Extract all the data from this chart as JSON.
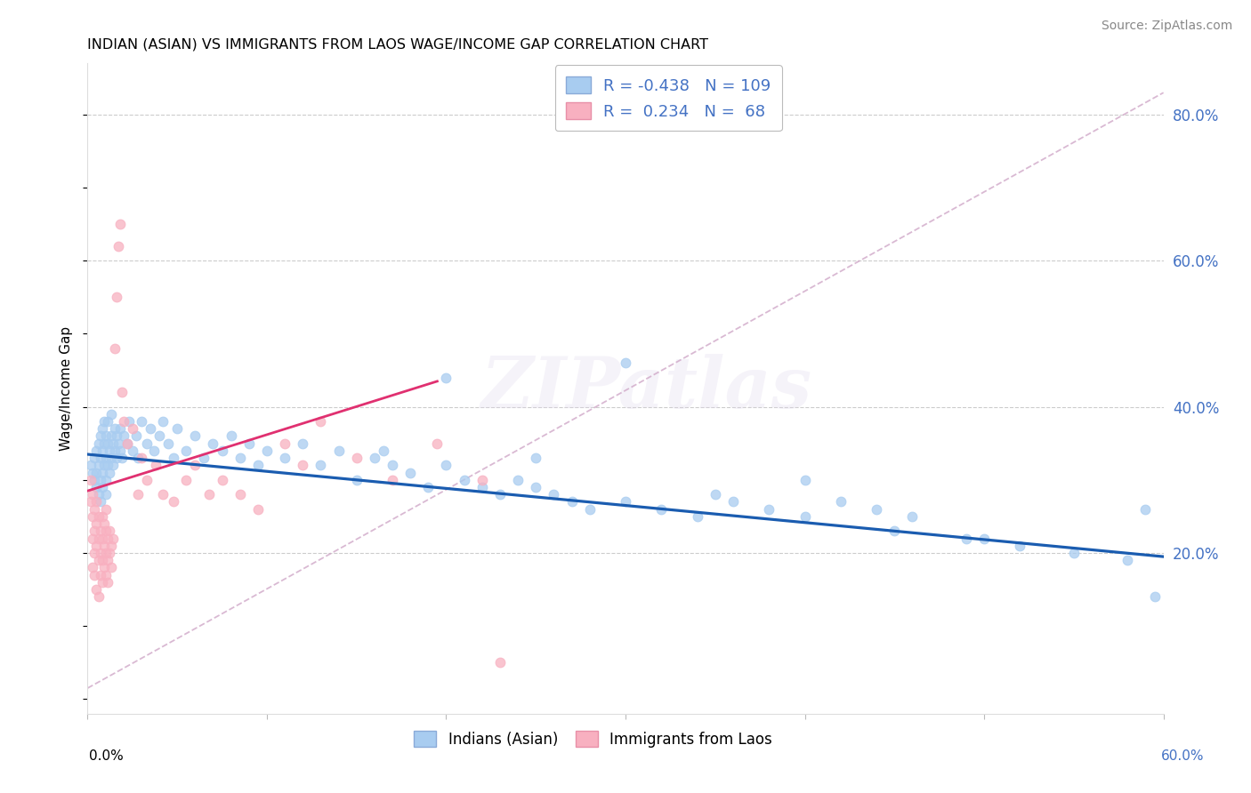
{
  "title": "INDIAN (ASIAN) VS IMMIGRANTS FROM LAOS WAGE/INCOME GAP CORRELATION CHART",
  "source": "Source: ZipAtlas.com",
  "ylabel": "Wage/Income Gap",
  "right_yticks": [
    "20.0%",
    "40.0%",
    "60.0%",
    "80.0%"
  ],
  "right_ytick_vals": [
    0.2,
    0.4,
    0.6,
    0.8
  ],
  "xlim": [
    0.0,
    0.6
  ],
  "ylim": [
    -0.02,
    0.87
  ],
  "legend1_label": "R = -0.438   N = 109",
  "legend2_label": "R =  0.234   N =  68",
  "legend_xlabel1": "Indians (Asian)",
  "legend_xlabel2": "Immigrants from Laos",
  "color_blue": "#A8CCF0",
  "color_pink": "#F8B0C0",
  "line_blue": "#1A5CB0",
  "line_pink": "#E03070",
  "line_dashed": "#D0A8C8",
  "watermark": "ZIPatlas",
  "indian_x": [
    0.002,
    0.003,
    0.004,
    0.004,
    0.005,
    0.005,
    0.005,
    0.006,
    0.006,
    0.006,
    0.007,
    0.007,
    0.007,
    0.007,
    0.008,
    0.008,
    0.008,
    0.008,
    0.009,
    0.009,
    0.009,
    0.01,
    0.01,
    0.01,
    0.01,
    0.011,
    0.011,
    0.011,
    0.012,
    0.012,
    0.013,
    0.013,
    0.013,
    0.014,
    0.014,
    0.015,
    0.015,
    0.016,
    0.016,
    0.017,
    0.018,
    0.018,
    0.019,
    0.02,
    0.022,
    0.023,
    0.025,
    0.027,
    0.028,
    0.03,
    0.033,
    0.035,
    0.037,
    0.04,
    0.042,
    0.045,
    0.048,
    0.05,
    0.055,
    0.06,
    0.065,
    0.07,
    0.075,
    0.08,
    0.085,
    0.09,
    0.095,
    0.1,
    0.11,
    0.12,
    0.13,
    0.14,
    0.15,
    0.16,
    0.165,
    0.17,
    0.18,
    0.19,
    0.2,
    0.21,
    0.22,
    0.23,
    0.24,
    0.25,
    0.26,
    0.27,
    0.28,
    0.3,
    0.32,
    0.34,
    0.36,
    0.38,
    0.4,
    0.42,
    0.44,
    0.46,
    0.49,
    0.52,
    0.55,
    0.58,
    0.59,
    0.595,
    0.2,
    0.25,
    0.3,
    0.35,
    0.4,
    0.45,
    0.5
  ],
  "indian_y": [
    0.32,
    0.31,
    0.3,
    0.33,
    0.29,
    0.31,
    0.34,
    0.28,
    0.32,
    0.35,
    0.3,
    0.33,
    0.36,
    0.27,
    0.31,
    0.34,
    0.37,
    0.29,
    0.32,
    0.35,
    0.38,
    0.3,
    0.33,
    0.36,
    0.28,
    0.32,
    0.35,
    0.38,
    0.31,
    0.34,
    0.33,
    0.36,
    0.39,
    0.32,
    0.35,
    0.34,
    0.37,
    0.33,
    0.36,
    0.35,
    0.34,
    0.37,
    0.33,
    0.36,
    0.35,
    0.38,
    0.34,
    0.36,
    0.33,
    0.38,
    0.35,
    0.37,
    0.34,
    0.36,
    0.38,
    0.35,
    0.33,
    0.37,
    0.34,
    0.36,
    0.33,
    0.35,
    0.34,
    0.36,
    0.33,
    0.35,
    0.32,
    0.34,
    0.33,
    0.35,
    0.32,
    0.34,
    0.3,
    0.33,
    0.34,
    0.32,
    0.31,
    0.29,
    0.32,
    0.3,
    0.29,
    0.28,
    0.3,
    0.29,
    0.28,
    0.27,
    0.26,
    0.27,
    0.26,
    0.25,
    0.27,
    0.26,
    0.3,
    0.27,
    0.26,
    0.25,
    0.22,
    0.21,
    0.2,
    0.19,
    0.26,
    0.14,
    0.44,
    0.33,
    0.46,
    0.28,
    0.25,
    0.23,
    0.22
  ],
  "laos_x": [
    0.002,
    0.002,
    0.003,
    0.003,
    0.003,
    0.003,
    0.004,
    0.004,
    0.004,
    0.004,
    0.005,
    0.005,
    0.005,
    0.005,
    0.006,
    0.006,
    0.006,
    0.006,
    0.007,
    0.007,
    0.007,
    0.008,
    0.008,
    0.008,
    0.008,
    0.009,
    0.009,
    0.009,
    0.01,
    0.01,
    0.01,
    0.01,
    0.011,
    0.011,
    0.011,
    0.012,
    0.012,
    0.013,
    0.013,
    0.014,
    0.015,
    0.016,
    0.017,
    0.018,
    0.019,
    0.02,
    0.022,
    0.025,
    0.028,
    0.03,
    0.033,
    0.038,
    0.042,
    0.048,
    0.055,
    0.06,
    0.068,
    0.075,
    0.085,
    0.095,
    0.11,
    0.12,
    0.13,
    0.15,
    0.17,
    0.195,
    0.22,
    0.23
  ],
  "laos_y": [
    0.3,
    0.27,
    0.25,
    0.28,
    0.22,
    0.18,
    0.23,
    0.2,
    0.17,
    0.26,
    0.24,
    0.21,
    0.27,
    0.15,
    0.22,
    0.19,
    0.25,
    0.14,
    0.2,
    0.23,
    0.17,
    0.22,
    0.19,
    0.16,
    0.25,
    0.21,
    0.18,
    0.24,
    0.2,
    0.23,
    0.17,
    0.26,
    0.22,
    0.19,
    0.16,
    0.23,
    0.2,
    0.21,
    0.18,
    0.22,
    0.48,
    0.55,
    0.62,
    0.65,
    0.42,
    0.38,
    0.35,
    0.37,
    0.28,
    0.33,
    0.3,
    0.32,
    0.28,
    0.27,
    0.3,
    0.32,
    0.28,
    0.3,
    0.28,
    0.26,
    0.35,
    0.32,
    0.38,
    0.33,
    0.3,
    0.35,
    0.3,
    0.05
  ],
  "blue_trend_x": [
    0.0,
    0.6
  ],
  "blue_trend_y": [
    0.335,
    0.195
  ],
  "pink_trend_x": [
    0.0,
    0.195
  ],
  "pink_trend_y": [
    0.285,
    0.435
  ],
  "dashed_line_x": [
    0.0,
    0.6
  ],
  "dashed_line_y": [
    0.015,
    0.83
  ]
}
